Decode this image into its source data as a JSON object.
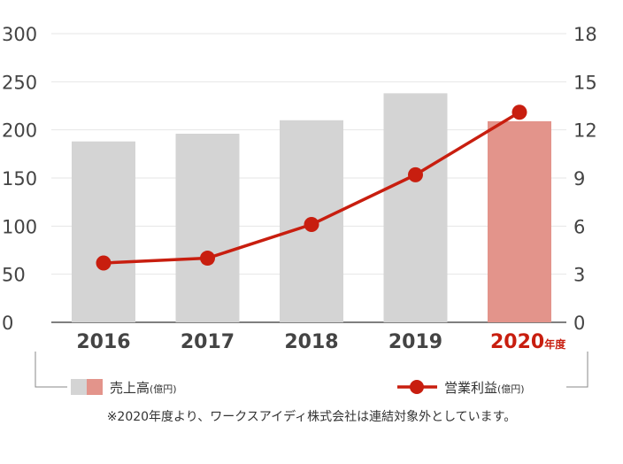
{
  "chart_data": {
    "type": "bar",
    "categories": [
      "2016",
      "2017",
      "2018",
      "2019",
      "2020"
    ],
    "category_suffix_highlight": "年度",
    "highlight_index": 4,
    "y_left": {
      "ticks": [
        "300",
        "250",
        "200",
        "150",
        "100",
        "50",
        "0"
      ],
      "range": [
        0,
        300
      ]
    },
    "y_right": {
      "ticks": [
        "18",
        "15",
        "12",
        "9",
        "6",
        "3",
        "0"
      ],
      "range": [
        0,
        18
      ]
    },
    "grid": true,
    "series": [
      {
        "name": "売上高",
        "unit": "(億円)",
        "type": "bar",
        "axis": "left",
        "values": [
          188,
          196,
          210,
          238,
          209
        ],
        "color": "#d4d4d4",
        "highlight_color": "#e3948b"
      },
      {
        "name": "営業利益",
        "unit": "(億円)",
        "type": "line",
        "axis": "right",
        "values": [
          3.7,
          4.0,
          6.1,
          9.2,
          13.1
        ],
        "color": "#c81e0f"
      }
    ],
    "legend_placement": "bottom",
    "note": "※2020年度より、ワークスアイディ株式会社は連結対象外としています。"
  }
}
